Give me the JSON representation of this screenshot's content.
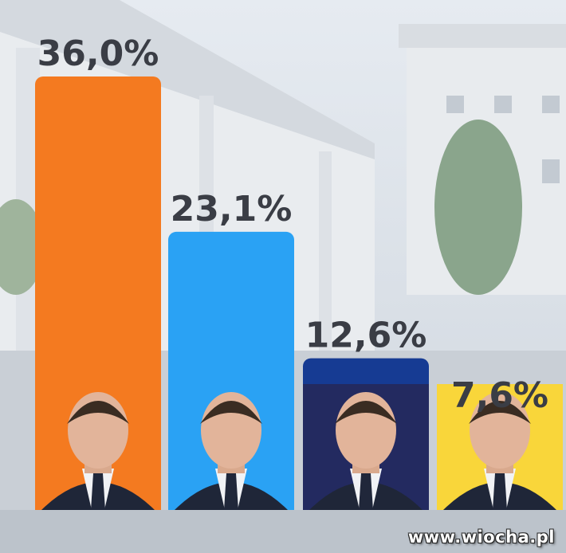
{
  "chart_data": {
    "type": "bar",
    "values": [
      36.0,
      23.1,
      12.6,
      7.6
    ],
    "value_labels": [
      "36,0%",
      "23,1%",
      "12,6%",
      "7,6%"
    ],
    "colors": [
      "#f47a20",
      "#2aa2f4",
      "#163b93",
      "#f9d63a"
    ],
    "portrait_backgrounds": [
      "#f47a20",
      "#2aa2f4",
      "#232a60",
      "#f9d63a"
    ],
    "ylim": [
      0,
      36.0
    ],
    "grid": false,
    "legend": "none"
  },
  "watermark": "www.wiocha.pl"
}
